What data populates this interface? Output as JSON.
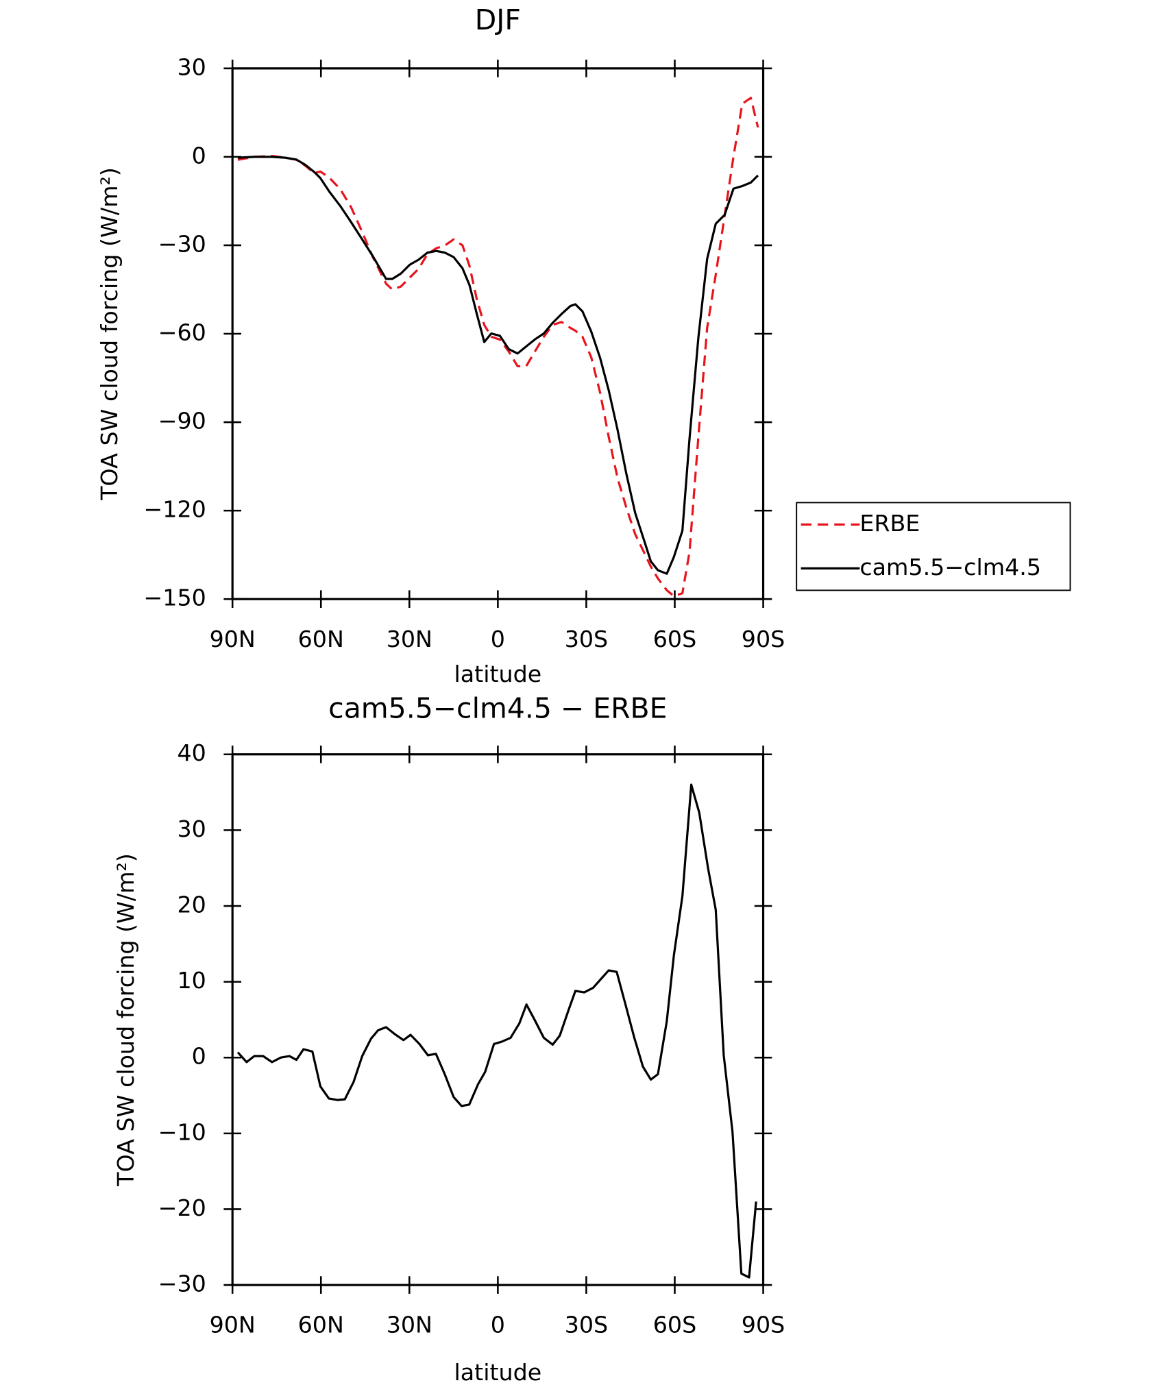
{
  "chart_data": [
    {
      "type": "line",
      "title": "DJF",
      "xlabel": "latitude",
      "ylabel": "TOA SW cloud forcing (W/m²)",
      "x": [
        88.2,
        82.6,
        76.6,
        72.1,
        68.3,
        65.3,
        62.3,
        60.2,
        57.2,
        53.4,
        49.8,
        46.2,
        42.4,
        37.9,
        35.8,
        32.9,
        29.9,
        26.9,
        23.9,
        20.9,
        17.9,
        15.0,
        12.0,
        9.6,
        7.2,
        4.6,
        2.2,
        -0.7,
        -3.7,
        -6.7,
        -9.6,
        -12.6,
        -15.6,
        -18.6,
        -21.6,
        -24.6,
        -26.3,
        -28.7,
        -31.7,
        -34.7,
        -37.6,
        -40.6,
        -43.6,
        -46.6,
        -49.5,
        -51.9,
        -54.3,
        -57.3,
        -59.7,
        -62.6,
        -65.0,
        -68.0,
        -71.0,
        -73.9,
        -76.9,
        -79.9,
        -82.9,
        -85.8,
        -88.2
      ],
      "series": [
        {
          "name": "ERBE",
          "color": "#e8141c",
          "style": "dashed",
          "values": [
            -1,
            0,
            0.3,
            -0.3,
            -1,
            -3,
            -5.5,
            -5,
            -7,
            -11,
            -17,
            -25,
            -34,
            -43,
            -45,
            -44,
            -41,
            -38,
            -33,
            -31,
            -30,
            -28,
            -30,
            -37,
            -48,
            -57,
            -61,
            -62,
            -66,
            -71,
            -71,
            -66,
            -61,
            -57,
            -56,
            -58,
            -59,
            -61,
            -68,
            -80,
            -95,
            -109,
            -119,
            -128,
            -134,
            -139,
            -143,
            -147,
            -149,
            -148,
            -134,
            -95,
            -58,
            -40,
            -20,
            0,
            18,
            20,
            10
          ]
        },
        {
          "name": "cam5.5−clm4.5",
          "color": "#000000",
          "style": "solid",
          "values": [
            -0.3,
            0,
            0,
            -0.3,
            -0.9,
            -2.7,
            -5.1,
            -7.2,
            -11.7,
            -16.7,
            -22.1,
            -27.7,
            -33.7,
            -41.4,
            -41.4,
            -39.6,
            -36.6,
            -34.9,
            -32.5,
            -31.9,
            -32.5,
            -34.0,
            -37.8,
            -43.5,
            -53.0,
            -62.8,
            -59.9,
            -60.7,
            -65.2,
            -66.7,
            -64.3,
            -61.9,
            -59.9,
            -56.3,
            -53.3,
            -50.6,
            -50.0,
            -52.4,
            -59.3,
            -68.2,
            -79.2,
            -92.6,
            -107.5,
            -120.8,
            -129.8,
            -137.2,
            -140.2,
            -141.4,
            -135.7,
            -126.8,
            -95.6,
            -61.3,
            -34.6,
            -22.7,
            -19.7,
            -10.8,
            -9.9,
            -8.7,
            -6.3
          ]
        }
      ],
      "xlim": [
        90,
        -90
      ],
      "xticks": [
        {
          "value": 90,
          "label": "90N"
        },
        {
          "value": 60,
          "label": "60N"
        },
        {
          "value": 30,
          "label": "30N"
        },
        0,
        {
          "value": -30,
          "label": "30S"
        },
        {
          "value": -60,
          "label": "60S"
        },
        {
          "value": -90,
          "label": "90S"
        }
      ],
      "ylim": [
        -150,
        30
      ],
      "yticks": [
        30,
        0,
        {
          "value": -30,
          "label": "−30"
        },
        {
          "value": -60,
          "label": "−60"
        },
        {
          "value": -90,
          "label": "−90"
        },
        {
          "value": -120,
          "label": "−120"
        },
        {
          "value": -150,
          "label": "−150"
        }
      ],
      "legend": "outside-right",
      "grid": false
    },
    {
      "type": "line",
      "title": "cam5.5−clm4.5 − ERBE",
      "xlabel": "latitude",
      "ylabel": "TOA SW cloud forcing (W/m²)",
      "x": [
        88.2,
        85.2,
        82.6,
        79.6,
        76.6,
        73.6,
        70.7,
        68.3,
        65.9,
        62.9,
        60.2,
        57.3,
        54.3,
        51.9,
        48.9,
        46.0,
        43.0,
        40.6,
        37.9,
        35.0,
        32.0,
        29.6,
        26.6,
        23.7,
        21.0,
        18.0,
        15.0,
        12.3,
        9.7,
        6.7,
        4.3,
        1.3,
        -1.3,
        -4.3,
        -7.3,
        -9.7,
        -12.6,
        -15.6,
        -18.6,
        -21.0,
        -24.0,
        -26.3,
        -29.3,
        -32.3,
        -35.3,
        -37.6,
        -40.3,
        -43.3,
        -46.3,
        -49.2,
        -51.9,
        -54.3,
        -57.3,
        -59.7,
        -62.6,
        -65.6,
        -68.3,
        -71.3,
        -73.9,
        -76.6,
        -79.6,
        -82.6,
        -85.2,
        -87.6
      ],
      "series": [
        {
          "color": "#000000",
          "style": "solid",
          "values": [
            0.7,
            -0.6,
            0.2,
            0.2,
            -0.6,
            0,
            0.2,
            -0.3,
            1.1,
            0.8,
            -3.8,
            -5.4,
            -5.6,
            -5.5,
            -3.2,
            0.2,
            2.5,
            3.6,
            4.0,
            3.1,
            2.3,
            3.0,
            1.8,
            0.3,
            0.5,
            -2.2,
            -5.2,
            -6.4,
            -6.2,
            -3.5,
            -1.9,
            1.8,
            2.1,
            2.6,
            4.5,
            7.0,
            4.9,
            2.6,
            1.7,
            2.9,
            6.3,
            8.8,
            8.6,
            9.2,
            10.5,
            11.5,
            11.3,
            7.0,
            2.6,
            -1.2,
            -2.9,
            -2.2,
            4.8,
            13.5,
            21.3,
            36.0,
            32.3,
            25.0,
            19.5,
            0.3,
            -9.8,
            -28.5,
            -29.0,
            -19.0
          ]
        }
      ],
      "xlim": [
        90,
        -90
      ],
      "xticks": [
        {
          "value": 90,
          "label": "90N"
        },
        {
          "value": 60,
          "label": "60N"
        },
        {
          "value": 30,
          "label": "30N"
        },
        0,
        {
          "value": -30,
          "label": "30S"
        },
        {
          "value": -60,
          "label": "60S"
        },
        {
          "value": -90,
          "label": "90S"
        }
      ],
      "ylim": [
        -30,
        40
      ],
      "yticks": [
        40,
        30,
        20,
        10,
        0,
        {
          "value": -10,
          "label": "−10"
        },
        {
          "value": -20,
          "label": "−20"
        },
        {
          "value": -30,
          "label": "−30"
        }
      ],
      "grid": false
    }
  ]
}
